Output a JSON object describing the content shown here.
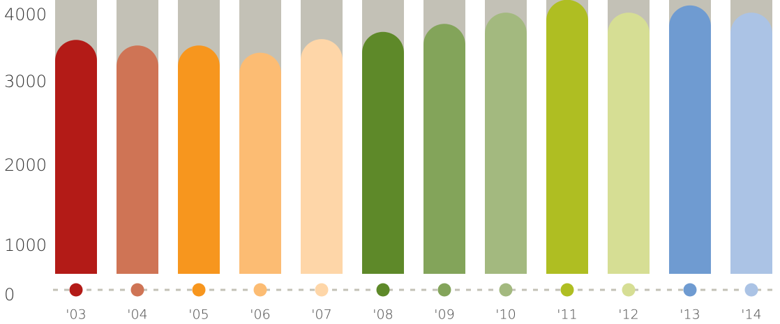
{
  "chart_data": {
    "type": "bar",
    "title": "",
    "xlabel": "",
    "ylabel": "",
    "ylim": [
      0,
      4000
    ],
    "y_ticks": [
      "0",
      "1000",
      "2000",
      "3000",
      "4000"
    ],
    "y_tick_values": [
      0,
      1000,
      2000,
      3000,
      4000
    ],
    "categories": [
      "'03",
      "'04",
      "'05",
      "'06",
      "'07",
      "'08",
      "'09",
      "'10",
      "'11",
      "'12",
      "'13",
      "'14"
    ],
    "values": [
      2920,
      2850,
      2850,
      2760,
      2930,
      3020,
      3120,
      3260,
      3420,
      3260,
      3350,
      3260
    ],
    "background_max": 4000,
    "colors": [
      "#b31b17",
      "#cf7455",
      "#f7961e",
      "#fcbc73",
      "#fed6a8",
      "#5e8929",
      "#83a45a",
      "#a3b97f",
      "#afbe22",
      "#d6de94",
      "#6f9bd1",
      "#abc3e5"
    ],
    "background_color": "#c3c1b6",
    "grid": false
  }
}
